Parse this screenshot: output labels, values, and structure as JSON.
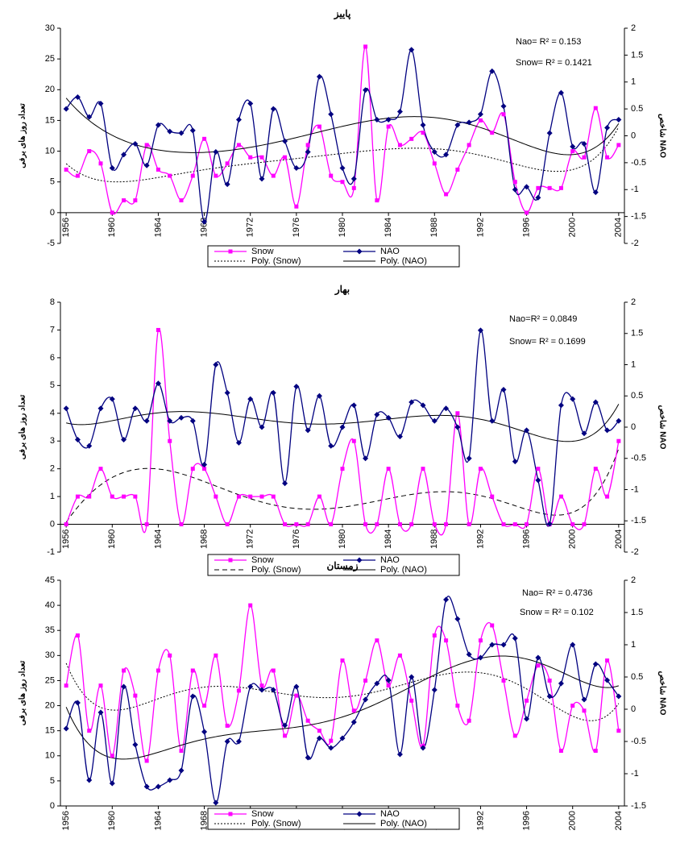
{
  "chart_data": [
    {
      "type": "line",
      "title": "پاییز",
      "y_label": "تعداد روز های برفی",
      "y2_label": "شاخص NAO",
      "annotations": [
        "Nao= R² = 0.153",
        "Snow= R² = 0.1421"
      ],
      "x": [
        1956,
        1957,
        1958,
        1959,
        1960,
        1961,
        1962,
        1963,
        1964,
        1965,
        1966,
        1967,
        1968,
        1969,
        1970,
        1971,
        1972,
        1973,
        1974,
        1975,
        1976,
        1977,
        1978,
        1979,
        1980,
        1981,
        1982,
        1983,
        1984,
        1985,
        1986,
        1987,
        1988,
        1989,
        1990,
        1991,
        1992,
        1993,
        1994,
        1995,
        1996,
        1997,
        1998,
        1999,
        2000,
        2001,
        2002,
        2003,
        2004
      ],
      "xlim": [
        1955.5,
        2004.5
      ],
      "xticks": [
        1956,
        1960,
        1964,
        1968,
        1972,
        1976,
        1980,
        1984,
        1988,
        1992,
        1996,
        2000,
        2004
      ],
      "ylim": [
        -5,
        30
      ],
      "yticks": [
        -5,
        0,
        5,
        10,
        15,
        20,
        25,
        30
      ],
      "x_axis_at": 0,
      "y2lim": [
        -2,
        2
      ],
      "y2ticks": [
        -2,
        -1.5,
        -1,
        -0.5,
        0,
        0.5,
        1,
        1.5,
        2
      ],
      "series": [
        {
          "name": "Snow",
          "color": "#ff00ff",
          "marker": "square",
          "axis": "y",
          "trend": {
            "name": "Poly. (Snow)",
            "order": 6,
            "dash": "dot"
          },
          "values": [
            7,
            6,
            10,
            8,
            0,
            2,
            2,
            11,
            7,
            6,
            2,
            6,
            12,
            6,
            8,
            11,
            9,
            9,
            6,
            9,
            1,
            11,
            14,
            6,
            5,
            4,
            27,
            2,
            14,
            11,
            12,
            13,
            8,
            3,
            7,
            11,
            15,
            13,
            16,
            5,
            0,
            4,
            4,
            4,
            10,
            9,
            17,
            9,
            11
          ]
        },
        {
          "name": "NAO",
          "color": "#000080",
          "marker": "diamond",
          "axis": "y2",
          "trend": {
            "name": "Poly. (NAO)",
            "order": 6,
            "dash": "solid"
          },
          "values": [
            0.5,
            0.72,
            0.35,
            0.6,
            -0.6,
            -0.35,
            -0.15,
            -0.55,
            0.2,
            0.08,
            0.05,
            0.1,
            -1.6,
            -0.3,
            -0.9,
            0.3,
            0.6,
            -0.8,
            0.5,
            -0.1,
            -0.6,
            -0.3,
            1.1,
            0.4,
            -0.6,
            -0.8,
            0.85,
            0.3,
            0.3,
            0.45,
            1.6,
            0.2,
            -0.3,
            -0.35,
            0.2,
            0.25,
            0.4,
            1.2,
            0.55,
            -1.0,
            -0.95,
            -1.15,
            0.05,
            0.8,
            -0.2,
            -0.15,
            -1.05,
            0.15,
            0.3
          ]
        }
      ]
    },
    {
      "type": "line",
      "title": "بهار",
      "y_label": "تعداد روز های برفی",
      "y2_label": "شاخص NAO",
      "annotations": [
        "Nao=R² = 0.0849",
        "Snow= R² = 0.1699"
      ],
      "x": [
        1956,
        1957,
        1958,
        1959,
        1960,
        1961,
        1962,
        1963,
        1964,
        1965,
        1966,
        1967,
        1968,
        1969,
        1970,
        1971,
        1972,
        1973,
        1974,
        1975,
        1976,
        1977,
        1978,
        1979,
        1980,
        1981,
        1982,
        1983,
        1984,
        1985,
        1986,
        1987,
        1988,
        1989,
        1990,
        1991,
        1992,
        1993,
        1994,
        1995,
        1996,
        1997,
        1998,
        1999,
        2000,
        2001,
        2002,
        2003,
        2004
      ],
      "xlim": [
        1955.5,
        2004.5
      ],
      "xticks": [
        1956,
        1960,
        1964,
        1968,
        1972,
        1976,
        1980,
        1984,
        1988,
        1992,
        1996,
        2000,
        2004
      ],
      "ylim": [
        -1,
        8
      ],
      "yticks": [
        -1,
        0,
        1,
        2,
        3,
        4,
        5,
        6,
        7,
        8
      ],
      "x_axis_at": 0,
      "y2lim": [
        -2,
        2
      ],
      "y2ticks": [
        -2,
        -1.5,
        -1,
        -0.5,
        0,
        0.5,
        1,
        1.5,
        2
      ],
      "series": [
        {
          "name": "Snow",
          "color": "#ff00ff",
          "marker": "square",
          "axis": "y",
          "trend": {
            "name": "Poly. (Snow)",
            "order": 6,
            "dash": "dash"
          },
          "values": [
            0,
            1,
            1,
            2,
            1,
            1,
            1,
            0,
            7,
            3,
            0,
            2,
            2,
            1,
            0,
            1,
            1,
            1,
            1,
            0,
            0,
            0,
            1,
            0,
            2,
            3,
            0,
            0,
            2,
            0,
            0,
            2,
            0,
            0,
            4,
            0,
            2,
            1,
            0,
            0,
            0,
            2,
            0,
            1,
            0,
            0,
            2,
            1,
            3
          ]
        },
        {
          "name": "NAO",
          "color": "#000080",
          "marker": "diamond",
          "axis": "y2",
          "trend": {
            "name": "Poly. (NAO)",
            "order": 6,
            "dash": "solid"
          },
          "values": [
            0.3,
            -0.2,
            -0.3,
            0.3,
            0.45,
            -0.2,
            0.3,
            0.1,
            0.7,
            0.1,
            0.15,
            0.1,
            -0.6,
            1.0,
            0.55,
            -0.25,
            0.45,
            0.0,
            0.55,
            -0.9,
            0.65,
            -0.05,
            0.5,
            -0.3,
            0.0,
            0.35,
            -0.5,
            0.2,
            0.15,
            -0.15,
            0.4,
            0.35,
            0.1,
            0.3,
            0.0,
            -0.5,
            1.55,
            0.1,
            0.6,
            -0.55,
            -0.05,
            -0.85,
            -1.55,
            0.35,
            0.45,
            -0.1,
            0.4,
            -0.05,
            0.1
          ]
        }
      ]
    },
    {
      "type": "line",
      "title": "زمستان",
      "y_label": "تعداد روز های برفی",
      "y2_label": "شاخص NAO",
      "annotations": [
        "Nao= R² = 0.4736",
        "Snow = R² = 0.102"
      ],
      "x": [
        1956,
        1957,
        1958,
        1959,
        1960,
        1961,
        1962,
        1963,
        1964,
        1965,
        1966,
        1967,
        1968,
        1969,
        1970,
        1971,
        1972,
        1973,
        1974,
        1975,
        1976,
        1977,
        1978,
        1979,
        1980,
        1981,
        1982,
        1983,
        1984,
        1985,
        1986,
        1987,
        1988,
        1989,
        1990,
        1991,
        1992,
        1993,
        1994,
        1995,
        1996,
        1997,
        1998,
        1999,
        2000,
        2001,
        2002,
        2003,
        2004
      ],
      "xlim": [
        1955.5,
        2004.5
      ],
      "xticks": [
        1956,
        1960,
        1964,
        1968,
        1972,
        1976,
        1980,
        1984,
        1988,
        1992,
        1996,
        2000,
        2004
      ],
      "ylim": [
        0,
        45
      ],
      "yticks": [
        0,
        5,
        10,
        15,
        20,
        25,
        30,
        35,
        40,
        45
      ],
      "x_axis_at": 0,
      "y2lim": [
        -1.5,
        2
      ],
      "y2ticks": [
        -1.5,
        -1,
        -0.5,
        0,
        0.5,
        1,
        1.5,
        2
      ],
      "series": [
        {
          "name": "Snow",
          "color": "#ff00ff",
          "marker": "square",
          "axis": "y",
          "trend": {
            "name": "Poly. (Snow)",
            "order": 6,
            "dash": "dot"
          },
          "values": [
            24,
            34,
            15,
            24,
            10,
            27,
            22,
            9,
            27,
            30,
            11,
            27,
            20,
            30,
            16,
            23,
            40,
            24,
            27,
            14,
            22,
            17,
            15,
            13,
            29,
            19,
            25,
            33,
            24,
            30,
            21,
            12,
            34,
            33,
            20,
            17,
            33,
            36,
            25,
            14,
            21,
            28,
            25,
            11,
            20,
            19,
            11,
            29,
            15
          ]
        },
        {
          "name": "NAO",
          "color": "#000080",
          "marker": "diamond",
          "axis": "y2",
          "trend": {
            "name": "Poly. (NAO)",
            "order": 6,
            "dash": "solid"
          },
          "values": [
            -0.3,
            0.1,
            -1.1,
            -0.05,
            -1.15,
            0.35,
            -0.55,
            -1.2,
            -1.2,
            -1.1,
            -0.95,
            0.2,
            -0.35,
            -1.45,
            -0.5,
            -0.5,
            0.35,
            0.3,
            0.3,
            -0.25,
            0.35,
            -0.75,
            -0.45,
            -0.6,
            -0.45,
            -0.2,
            0.15,
            0.4,
            0.45,
            -0.7,
            0.5,
            -0.6,
            0.3,
            1.7,
            1.4,
            0.85,
            0.8,
            1.0,
            1.0,
            1.1,
            -0.15,
            0.8,
            0.2,
            0.4,
            1.0,
            0.15,
            0.7,
            0.45,
            0.2
          ]
        }
      ]
    }
  ]
}
